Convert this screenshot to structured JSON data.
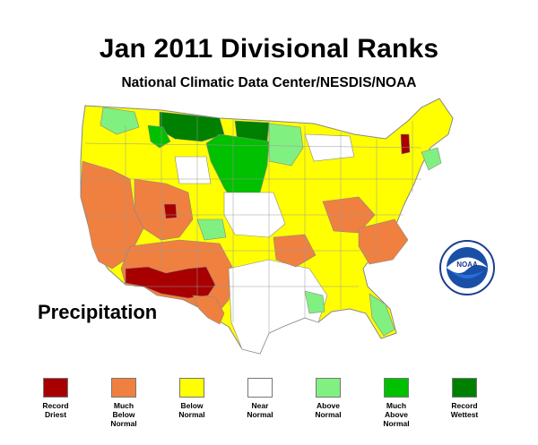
{
  "header": {
    "title": "Jan 2011 Divisional Ranks",
    "subtitle": "National Climatic Data Center/NESDIS/NOAA"
  },
  "map": {
    "label": "Precipitation",
    "logo_text": "NOAA",
    "colors": {
      "record_driest": "#a80000",
      "much_below": "#f08040",
      "below": "#ffff00",
      "near": "#ffffff",
      "above": "#80f080",
      "much_above": "#00c000",
      "record_wettest": "#008000",
      "border": "#888888"
    }
  },
  "legend": {
    "items": [
      {
        "label": "Record\nDriest",
        "color": "#a80000"
      },
      {
        "label": "Much\nBelow\nNormal",
        "color": "#f08040"
      },
      {
        "label": "Below\nNormal",
        "color": "#ffff00"
      },
      {
        "label": "Near\nNormal",
        "color": "#ffffff"
      },
      {
        "label": "Above\nNormal",
        "color": "#80f080"
      },
      {
        "label": "Much\nAbove\nNormal",
        "color": "#00c000"
      },
      {
        "label": "Record\nWettest",
        "color": "#008000"
      }
    ]
  }
}
